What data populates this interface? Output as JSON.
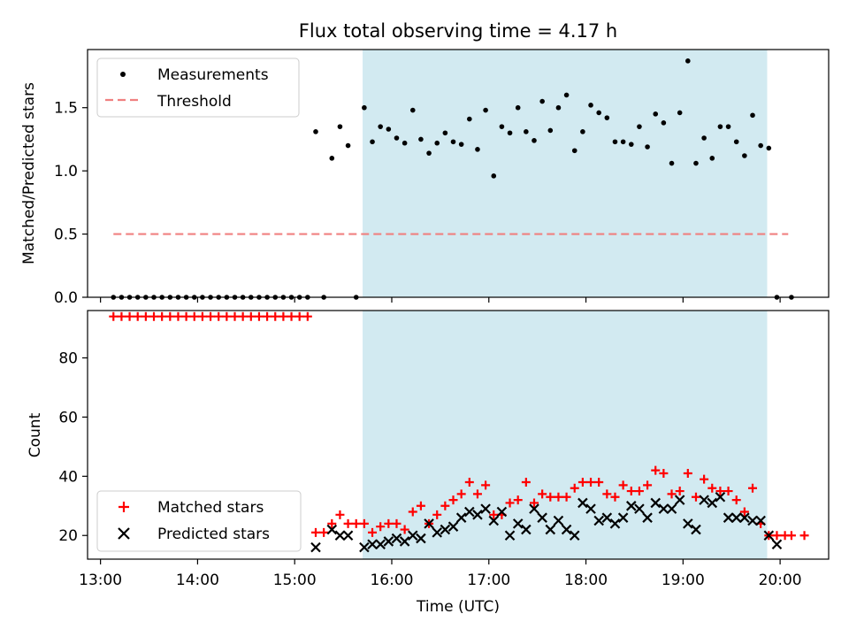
{
  "title": "Flux total observing time = 4.17 h",
  "chart_data": [
    {
      "panel": "top",
      "type": "scatter",
      "ylabel": "Matched/Predicted stars",
      "ylim": [
        0,
        1.96
      ],
      "yticks": [
        0.0,
        0.5,
        1.0,
        1.5
      ],
      "ytick_labels": [
        "0.0",
        "0.5",
        "1.0",
        "1.5"
      ],
      "legend": {
        "location": "upper-left",
        "entries": [
          "Measurements",
          "Threshold"
        ]
      },
      "threshold": {
        "name": "Threshold",
        "value": 0.5,
        "x_range": [
          "13:08",
          "20:05"
        ],
        "color": "#f08080",
        "style": "dashed"
      },
      "series": [
        {
          "name": "Measurements",
          "color": "#000000",
          "x": [
            "13:08",
            "13:13",
            "13:18",
            "13:23",
            "13:28",
            "13:33",
            "13:38",
            "13:43",
            "13:48",
            "13:53",
            "13:58",
            "14:03",
            "14:08",
            "14:13",
            "14:18",
            "14:23",
            "14:28",
            "14:33",
            "14:38",
            "14:43",
            "14:48",
            "14:53",
            "14:58",
            "15:03",
            "15:08",
            "15:13",
            "15:18",
            "15:23",
            "15:28",
            "15:33",
            "15:38",
            "15:43",
            "15:48",
            "15:53",
            "15:58",
            "16:03",
            "16:08",
            "16:13",
            "16:18",
            "16:23",
            "16:28",
            "16:33",
            "16:38",
            "16:43",
            "16:48",
            "16:53",
            "16:58",
            "17:03",
            "17:08",
            "17:13",
            "17:18",
            "17:23",
            "17:28",
            "17:33",
            "17:38",
            "17:43",
            "17:48",
            "17:53",
            "17:58",
            "18:03",
            "18:08",
            "18:13",
            "18:18",
            "18:23",
            "18:28",
            "18:33",
            "18:38",
            "18:43",
            "18:48",
            "18:53",
            "18:58",
            "19:03",
            "19:08",
            "19:13",
            "19:18",
            "19:23",
            "19:28",
            "19:33",
            "19:38",
            "19:43",
            "19:48",
            "19:53",
            "19:58",
            "20:07"
          ],
          "y": [
            0,
            0,
            0,
            0,
            0,
            0,
            0,
            0,
            0,
            0,
            0,
            0,
            0,
            0,
            0,
            0,
            0,
            0,
            0,
            0,
            0,
            0,
            0,
            0,
            0,
            1.31,
            0,
            1.1,
            1.35,
            1.2,
            0,
            1.5,
            1.23,
            1.35,
            1.33,
            1.26,
            1.22,
            1.48,
            1.25,
            1.14,
            1.22,
            1.3,
            1.23,
            1.21,
            1.41,
            1.17,
            1.48,
            0.96,
            1.35,
            1.3,
            1.5,
            1.31,
            1.24,
            1.55,
            1.32,
            1.5,
            1.6,
            1.16,
            1.31,
            1.52,
            1.46,
            1.42,
            1.23,
            1.23,
            1.21,
            1.35,
            1.19,
            1.45,
            1.38,
            1.06,
            1.46,
            1.87,
            1.06,
            1.26,
            1.1,
            1.35,
            1.35,
            1.23,
            1.12,
            1.44,
            1.2,
            1.18,
            0,
            0
          ]
        }
      ]
    },
    {
      "panel": "bottom",
      "type": "scatter",
      "xlabel": "Time (UTC)",
      "ylabel": "Count",
      "xlim": [
        "12:52",
        "20:30"
      ],
      "xticks": [
        "13:00",
        "14:00",
        "15:00",
        "16:00",
        "17:00",
        "18:00",
        "19:00",
        "20:00"
      ],
      "ylim": [
        12,
        96
      ],
      "yticks": [
        20,
        40,
        60,
        80
      ],
      "legend": {
        "location": "lower-left",
        "entries": [
          "Matched stars",
          "Predicted stars"
        ]
      },
      "series": [
        {
          "name": "Matched stars",
          "marker": "plus",
          "color": "#ff0000",
          "x": [
            "13:08",
            "13:13",
            "13:18",
            "13:23",
            "13:28",
            "13:33",
            "13:38",
            "13:43",
            "13:48",
            "13:53",
            "13:58",
            "14:03",
            "14:08",
            "14:13",
            "14:18",
            "14:23",
            "14:28",
            "14:33",
            "14:38",
            "14:43",
            "14:48",
            "14:53",
            "14:58",
            "15:03",
            "15:08",
            "15:13",
            "15:18",
            "15:23",
            "15:28",
            "15:33",
            "15:38",
            "15:43",
            "15:48",
            "15:53",
            "15:58",
            "16:03",
            "16:08",
            "16:13",
            "16:18",
            "16:23",
            "16:28",
            "16:33",
            "16:38",
            "16:43",
            "16:48",
            "16:53",
            "16:58",
            "17:03",
            "17:08",
            "17:13",
            "17:18",
            "17:23",
            "17:28",
            "17:33",
            "17:38",
            "17:43",
            "17:48",
            "17:53",
            "17:58",
            "18:03",
            "18:08",
            "18:13",
            "18:18",
            "18:23",
            "18:28",
            "18:33",
            "18:38",
            "18:43",
            "18:48",
            "18:53",
            "18:58",
            "19:03",
            "19:08",
            "19:13",
            "19:18",
            "19:23",
            "19:28",
            "19:33",
            "19:38",
            "19:43",
            "19:48",
            "19:53",
            "19:58",
            "20:03",
            "20:07",
            "20:15"
          ],
          "y": [
            94,
            94,
            94,
            94,
            94,
            94,
            94,
            94,
            94,
            94,
            94,
            94,
            94,
            94,
            94,
            94,
            94,
            94,
            94,
            94,
            94,
            94,
            94,
            94,
            94,
            21,
            21,
            24,
            27,
            24,
            24,
            24,
            21,
            23,
            24,
            24,
            22,
            28,
            30,
            24,
            27,
            30,
            32,
            34,
            38,
            34,
            37,
            27,
            27,
            31,
            32,
            38,
            31,
            34,
            33,
            33,
            33,
            36,
            38,
            38,
            38,
            34,
            33,
            37,
            35,
            35,
            37,
            42,
            41,
            34,
            35,
            41,
            33,
            39,
            36,
            35,
            35,
            32,
            28,
            36,
            24,
            20,
            20,
            20,
            20,
            20
          ]
        },
        {
          "name": "Predicted stars",
          "marker": "x",
          "color": "#000000",
          "x": [
            "15:13",
            "15:23",
            "15:28",
            "15:33",
            "15:43",
            "15:48",
            "15:53",
            "15:58",
            "16:03",
            "16:08",
            "16:13",
            "16:18",
            "16:23",
            "16:28",
            "16:33",
            "16:38",
            "16:43",
            "16:48",
            "16:53",
            "16:58",
            "17:03",
            "17:08",
            "17:13",
            "17:18",
            "17:23",
            "17:28",
            "17:33",
            "17:38",
            "17:43",
            "17:48",
            "17:53",
            "17:58",
            "18:03",
            "18:08",
            "18:13",
            "18:18",
            "18:23",
            "18:28",
            "18:33",
            "18:38",
            "18:43",
            "18:48",
            "18:53",
            "18:58",
            "19:03",
            "19:08",
            "19:13",
            "19:18",
            "19:23",
            "19:28",
            "19:33",
            "19:38",
            "19:43",
            "19:48",
            "19:53",
            "19:58"
          ],
          "y": [
            16,
            22,
            20,
            20,
            16,
            17,
            17,
            18,
            19,
            18,
            20,
            19,
            24,
            21,
            22,
            23,
            26,
            28,
            27,
            29,
            25,
            28,
            20,
            24,
            22,
            29,
            26,
            22,
            25,
            22,
            20,
            31,
            29,
            25,
            26,
            24,
            26,
            30,
            29,
            26,
            31,
            29,
            29,
            32,
            24,
            22,
            32,
            31,
            33,
            26,
            26,
            26,
            25,
            25,
            20,
            17
          ]
        }
      ]
    }
  ],
  "highlight": {
    "start": "15:42",
    "end": "19:52",
    "color": "#add8e6"
  }
}
